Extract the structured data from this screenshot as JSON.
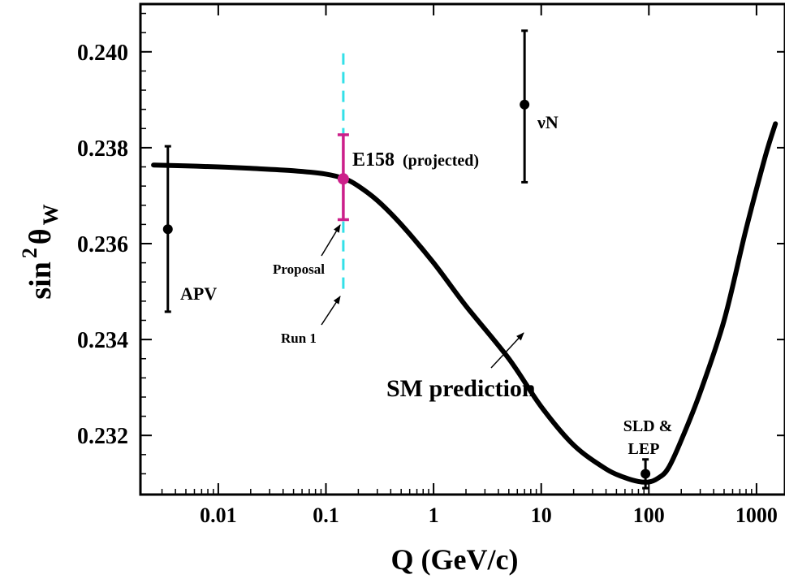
{
  "chart_data": {
    "type": "scatter",
    "xlabel": "Q (GeV/c)",
    "ylabel_main": "sin",
    "ylabel_sup": "2",
    "ylabel_theta": "θ",
    "ylabel_sub": "W",
    "x_scale": "log",
    "xlim": [
      0.002,
      2000
    ],
    "ylim": [
      0.2308,
      0.241
    ],
    "x_ticks": [
      {
        "value": 0.01,
        "label": "0.01"
      },
      {
        "value": 0.1,
        "label": "0.1"
      },
      {
        "value": 1,
        "label": "1"
      },
      {
        "value": 10,
        "label": "10"
      },
      {
        "value": 100,
        "label": "100"
      },
      {
        "value": 1000,
        "label": "1000"
      }
    ],
    "y_ticks": [
      {
        "value": 0.232,
        "label": "0.232"
      },
      {
        "value": 0.234,
        "label": "0.234"
      },
      {
        "value": 0.236,
        "label": "0.236"
      },
      {
        "value": 0.238,
        "label": "0.238"
      },
      {
        "value": 0.24,
        "label": "0.240"
      }
    ],
    "grid": false,
    "sm_curve": {
      "x": [
        0.0025,
        0.005,
        0.01,
        0.02,
        0.05,
        0.1,
        0.15,
        0.2,
        0.3,
        0.5,
        1,
        2,
        5,
        10,
        20,
        40,
        60,
        80,
        100,
        120,
        150,
        200,
        300,
        500,
        800,
        1200,
        1500
      ],
      "y": [
        0.23764,
        0.23762,
        0.2376,
        0.23757,
        0.23752,
        0.23745,
        0.23735,
        0.2372,
        0.2369,
        0.2364,
        0.2356,
        0.2347,
        0.2336,
        0.2326,
        0.2318,
        0.2313,
        0.23112,
        0.23104,
        0.23103,
        0.2311,
        0.2313,
        0.2319,
        0.2329,
        0.2344,
        0.2363,
        0.2378,
        0.2385
      ]
    },
    "points": [
      {
        "name": "APV",
        "x": 0.0034,
        "y": 0.2363,
        "ylo": 0.23458,
        "yhi": 0.23803,
        "color": "#000000"
      },
      {
        "name": "νN",
        "x": 7,
        "y": 0.2389,
        "ylo": 0.23728,
        "yhi": 0.24044,
        "color": "#000000"
      },
      {
        "name": "SLD & LEP",
        "x": 93,
        "y": 0.2312,
        "ylo": 0.2309,
        "yhi": 0.2315,
        "color": "#000000"
      },
      {
        "name": "E158 (projected)",
        "x": 0.145,
        "y": 0.23735,
        "ylo": 0.2365,
        "yhi": 0.23827,
        "color": "#cc1f8a"
      }
    ],
    "run1_band": {
      "x": 0.145,
      "ylo": 0.23497,
      "yhi": 0.23997,
      "color": "#33e0e8"
    },
    "annotations": {
      "apv": "APV",
      "nun": "νN",
      "sld_line1": "SLD &",
      "sld_line2": "LEP",
      "e158_main": "E158",
      "e158_sub": "(projected)",
      "proposal": "Proposal",
      "run1": "Run 1",
      "sm": "SM prediction"
    }
  }
}
